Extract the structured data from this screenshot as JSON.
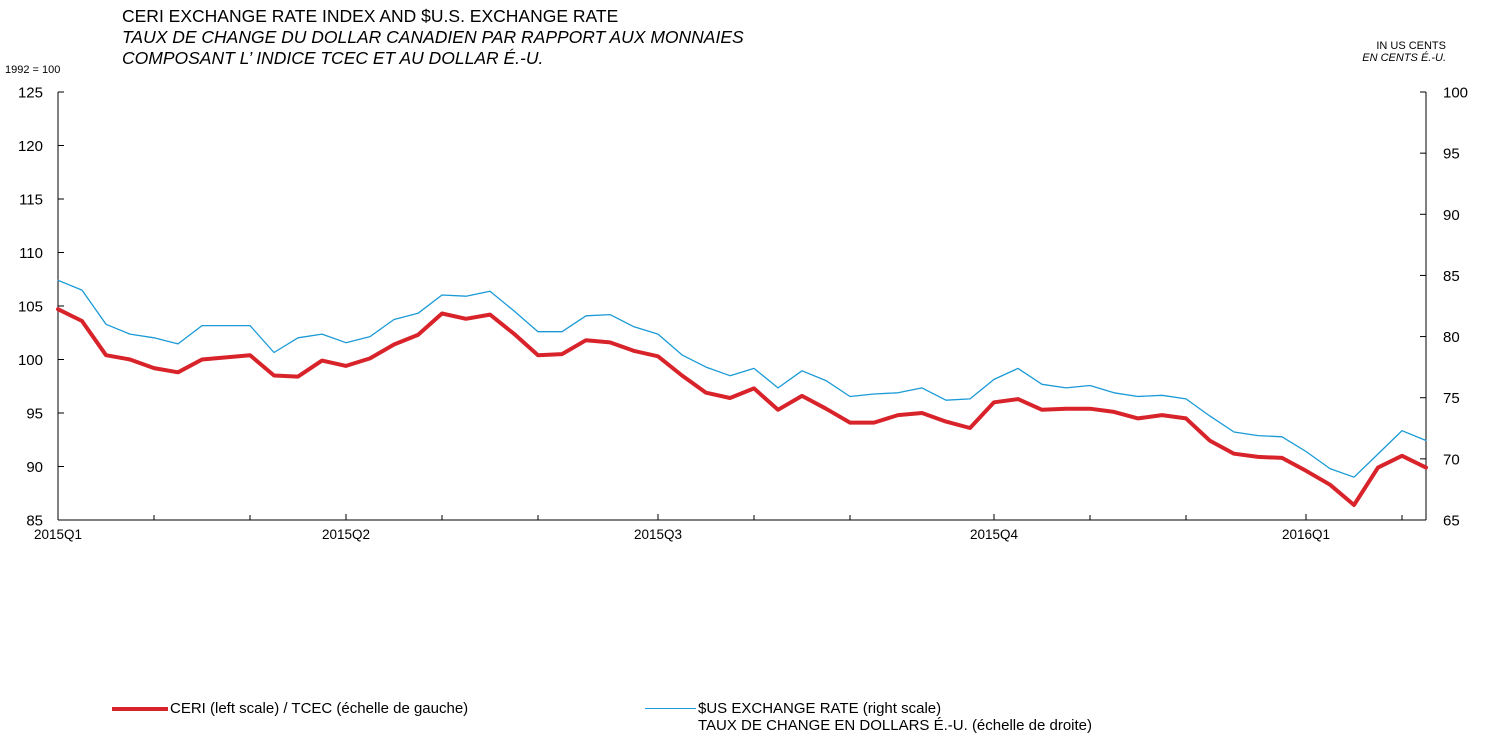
{
  "chart_data": {
    "type": "line",
    "title": "CERI EXCHANGE RATE INDEX AND $U.S. EXCHANGE RATE",
    "subtitle_fr": "TAUX DE CHANGE DU DOLLAR CANADIEN PAR RAPPORT AUX MONNAIES",
    "subtitle_fr2": "COMPOSANT L’ INDICE TCEC ET AU DOLLAR É.-U.",
    "left_unit": "1992 = 100",
    "right_unit": "IN US CENTS",
    "right_unit_fr": "EN CENTS É.-U.",
    "left_axis": {
      "min": 85,
      "max": 125,
      "ticks": [
        85,
        90,
        95,
        100,
        105,
        110,
        115,
        120,
        125
      ]
    },
    "right_axis": {
      "min": 65,
      "max": 100,
      "ticks": [
        65,
        70,
        75,
        80,
        85,
        90,
        95,
        100
      ]
    },
    "x_labels": [
      {
        "index": 0,
        "label": "2015Q1"
      },
      {
        "index": 12,
        "label": "2015Q2"
      },
      {
        "index": 25,
        "label": "2015Q3"
      },
      {
        "index": 39,
        "label": "2015Q4"
      },
      {
        "index": 52,
        "label": "2016Q1"
      }
    ],
    "x_minor_ticks": [
      4,
      8,
      16,
      20,
      29,
      33,
      43,
      47,
      56
    ],
    "n_points": 58,
    "series": [
      {
        "name": "CERI (left scale) / TCEC (échelle de gauche)",
        "axis": "left",
        "color": "#d8232a",
        "values": [
          104.7,
          103.6,
          100.4,
          100.0,
          99.2,
          98.8,
          100.0,
          100.2,
          100.4,
          98.5,
          98.4,
          99.9,
          99.4,
          100.1,
          101.4,
          102.3,
          104.3,
          103.8,
          104.2,
          102.4,
          100.4,
          100.5,
          101.8,
          101.6,
          100.8,
          100.3,
          98.5,
          96.9,
          96.4,
          97.3,
          95.3,
          96.6,
          95.4,
          94.1,
          94.1,
          94.8,
          95.0,
          94.2,
          93.6,
          96.0,
          96.3,
          95.3,
          95.4,
          95.4,
          95.1,
          94.5,
          94.8,
          94.5,
          92.4,
          91.2,
          90.9,
          90.8,
          89.6,
          88.3,
          86.4,
          89.9,
          91.0,
          89.9
        ]
      },
      {
        "name": "$US EXCHANGE RATE (right scale)",
        "name2": "TAUX DE CHANGE EN DOLLARS É.-U. (échelle de droite)",
        "axis": "right",
        "color": "#1a9ad6",
        "values": [
          84.6,
          83.8,
          81.0,
          80.2,
          79.9,
          79.4,
          80.9,
          80.9,
          80.9,
          78.7,
          79.9,
          80.2,
          79.5,
          80.0,
          81.4,
          81.9,
          83.4,
          83.3,
          83.7,
          82.1,
          80.4,
          80.4,
          81.7,
          81.8,
          80.8,
          80.2,
          78.5,
          77.5,
          76.8,
          77.4,
          75.8,
          77.2,
          76.4,
          75.1,
          75.3,
          75.4,
          75.8,
          74.8,
          74.9,
          76.5,
          77.4,
          76.1,
          75.8,
          76.0,
          75.4,
          75.1,
          75.2,
          74.9,
          73.5,
          72.2,
          71.9,
          71.8,
          70.6,
          69.2,
          68.5,
          70.4,
          72.3,
          71.5
        ]
      }
    ]
  },
  "legend": {
    "ceri": "CERI (left scale) / TCEC (échelle de gauche)",
    "usd_line1": "$US EXCHANGE RATE (right scale)",
    "usd_line2": "TAUX DE CHANGE EN DOLLARS É.-U. (échelle de droite)"
  }
}
